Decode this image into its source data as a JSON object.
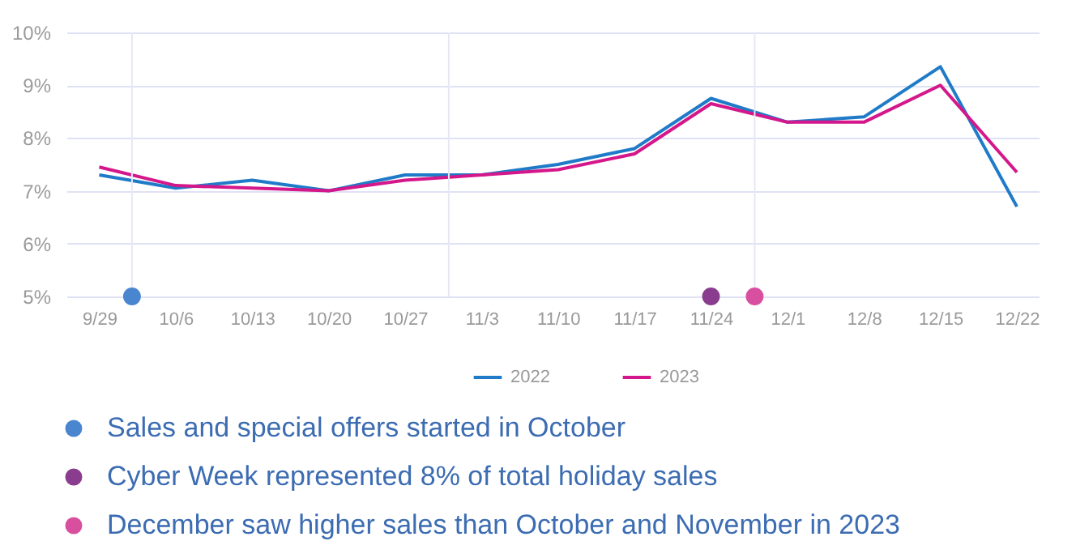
{
  "chart_data": {
    "type": "line",
    "x": [
      "--09-29",
      "--10-06",
      "--10-13",
      "--10-20",
      "--10-27",
      "--11-03",
      "--11-10",
      "--11-17",
      "--11-24",
      "--12-01",
      "--12-08",
      "--12-15",
      "--12-22"
    ],
    "xlim": [
      "--09-26",
      "--12-24"
    ],
    "xticks": [
      {
        "value": "--09-29",
        "label": "9/29"
      },
      {
        "value": "--10-06",
        "label": "10/6"
      },
      {
        "value": "--10-13",
        "label": "10/13"
      },
      {
        "value": "--10-20",
        "label": "10/20"
      },
      {
        "value": "--10-27",
        "label": "10/27"
      },
      {
        "value": "--11-03",
        "label": "11/3"
      },
      {
        "value": "--11-10",
        "label": "11/10"
      },
      {
        "value": "--11-17",
        "label": "11/17"
      },
      {
        "value": "--11-24",
        "label": "11/24"
      },
      {
        "value": "--12-01",
        "label": "12/1"
      },
      {
        "value": "--12-08",
        "label": "12/8"
      },
      {
        "value": "--12-15",
        "label": "12/15"
      },
      {
        "value": "--12-22",
        "label": "12/22"
      }
    ],
    "ylim": [
      5,
      10
    ],
    "yticks": [
      {
        "value": 5,
        "label": "5%"
      },
      {
        "value": 6,
        "label": "6%"
      },
      {
        "value": 7,
        "label": "7%"
      },
      {
        "value": 8,
        "label": "8%"
      },
      {
        "value": 9,
        "label": "9%"
      },
      {
        "value": 10,
        "label": "10%"
      }
    ],
    "grid": "y",
    "legend": "bottom",
    "ref_lines": [
      {
        "axis": "x",
        "value": "--10-02",
        "color": "#e6e8f6"
      },
      {
        "axis": "x",
        "value": "--10-31",
        "color": "#e6e8f6"
      },
      {
        "axis": "x",
        "value": "--11-28",
        "color": "#e6e8f6"
      }
    ],
    "series": [
      {
        "name": "2022",
        "color": "#1f7bc8",
        "values": [
          7.3,
          7.05,
          7.2,
          7.0,
          7.3,
          7.3,
          7.5,
          7.8,
          8.75,
          8.3,
          8.4,
          9.35,
          6.7
        ]
      },
      {
        "name": "2023",
        "color": "#d4178a",
        "values": [
          7.45,
          7.1,
          7.05,
          7.0,
          7.2,
          7.3,
          7.4,
          7.7,
          8.65,
          8.3,
          8.3,
          9.0,
          7.35
        ]
      },
      {
        "name": "Sales and special offers started in October",
        "type": "scatter",
        "color": "#4a86cf",
        "x": [
          "--10-02"
        ],
        "values": [
          5
        ]
      },
      {
        "name": "Cyber Week represented 8% of total holiday sales",
        "type": "scatter",
        "color": "#8a3d8e",
        "x": [
          "--11-24"
        ],
        "values": [
          5
        ]
      },
      {
        "name": "December saw higher sales than October and November in 2023",
        "type": "scatter",
        "color": "#d84f9f",
        "x": [
          "--11-28"
        ],
        "values": [
          5
        ]
      }
    ]
  }
}
